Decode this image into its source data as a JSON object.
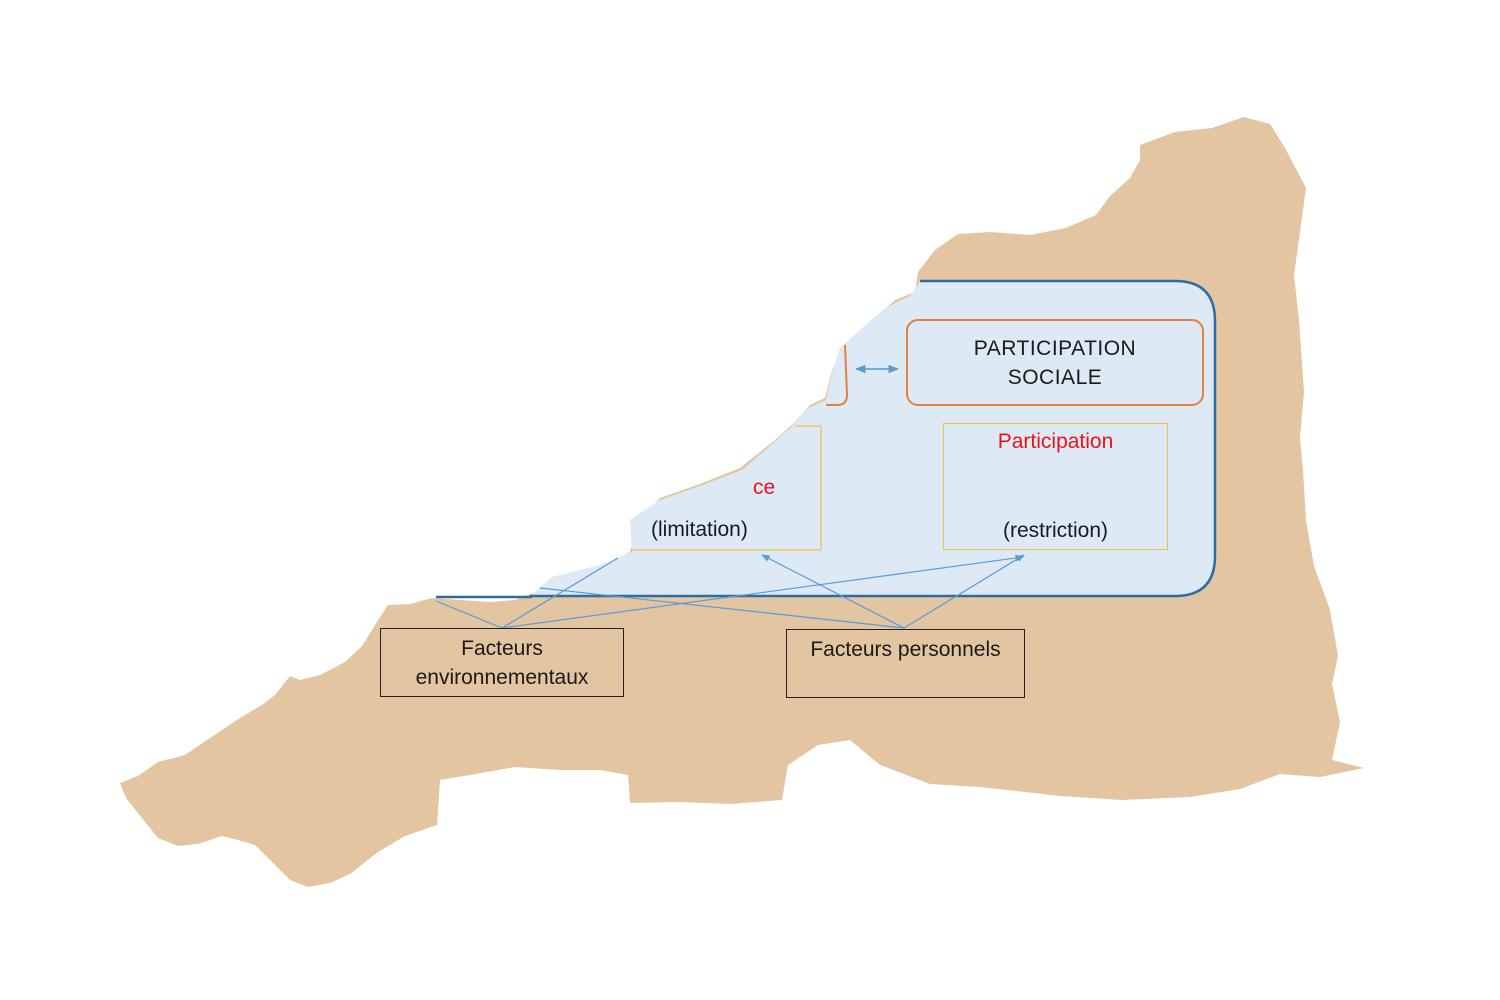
{
  "colors": {
    "background": "#ffffff",
    "region_fill": "#e3c5a2",
    "panel_fill": "#dde9f5",
    "panel_border": "#2e6da4",
    "connector": "#5b9bd5",
    "accent_orange": "#e67e3c",
    "accent_gold": "#f2c04a",
    "accent_red": "#e8141c",
    "box_border": "#222222"
  },
  "diagram": {
    "participation_domain": {
      "line1": "PARTICIPATION",
      "line2": "SOCIALE"
    },
    "participation_level": {
      "title": "Participation",
      "subtitle": "(restriction)"
    },
    "activity_level": {
      "title_fragment": "ce",
      "subtitle": "(limitation)"
    },
    "environmental_factors": {
      "line1": "Facteurs",
      "line2": "environnementaux"
    },
    "personal_factors": {
      "label": "Facteurs personnels"
    }
  }
}
